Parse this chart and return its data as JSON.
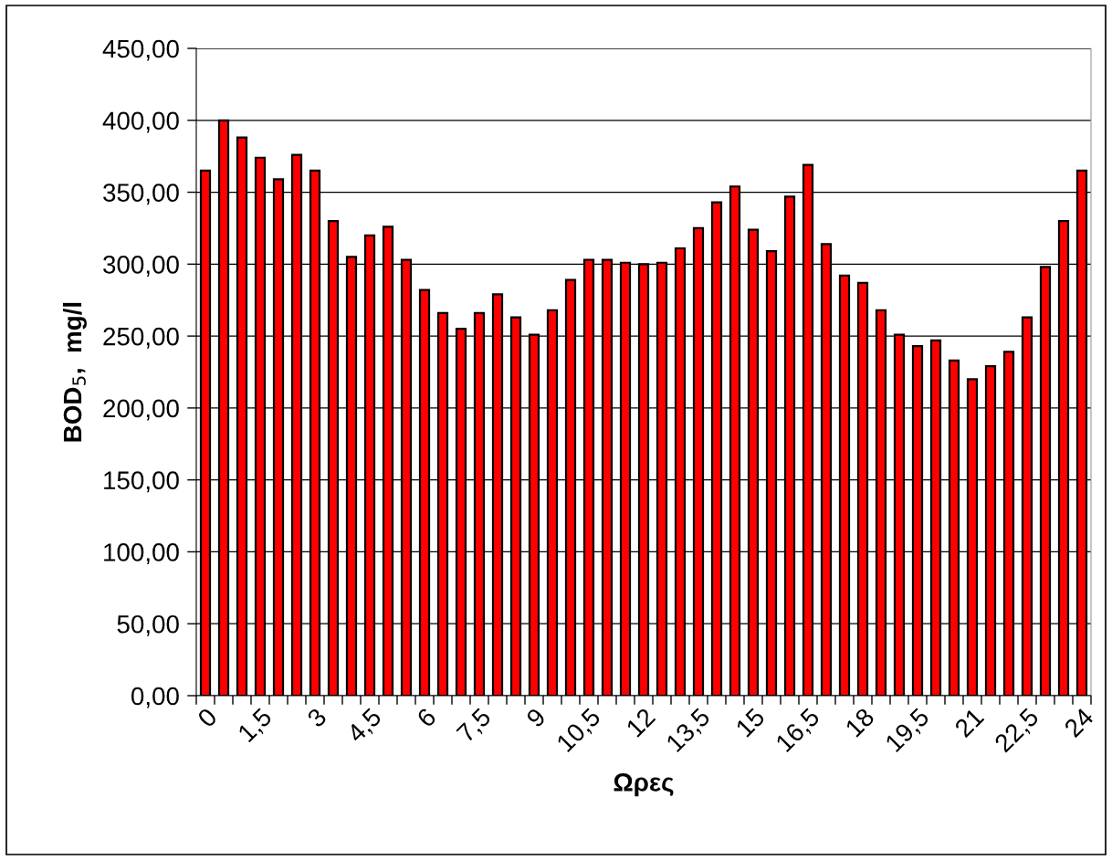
{
  "chart_data": {
    "type": "bar",
    "xlabel": "Ωρες",
    "ylabel": "BOD$_{5}$,  mg/l",
    "categories": [
      "0",
      null,
      null,
      "1,5",
      null,
      null,
      "3",
      null,
      null,
      "4,5",
      null,
      null,
      "6",
      null,
      null,
      "7,5",
      null,
      null,
      "9",
      null,
      null,
      "10,5",
      null,
      null,
      "12",
      null,
      null,
      "13,5",
      null,
      null,
      "15",
      null,
      null,
      "16,5",
      null,
      null,
      "18",
      null,
      null,
      "19,5",
      null,
      null,
      "21",
      null,
      null,
      "22,5",
      null,
      null,
      "24"
    ],
    "values": [
      365,
      400,
      388,
      374,
      359,
      376,
      365,
      330,
      305,
      320,
      326,
      303,
      282,
      266,
      255,
      266,
      279,
      263,
      251,
      268,
      289,
      303,
      303,
      301,
      300,
      301,
      311,
      325,
      343,
      354,
      324,
      309,
      347,
      369,
      314,
      292,
      287,
      268,
      251,
      243,
      247,
      233,
      220,
      229,
      239,
      263,
      298,
      330,
      365
    ],
    "color": "#ff0000",
    "ylim": [
      0,
      450
    ],
    "yticks": [
      {
        "value": 0,
        "label": "0,00"
      },
      {
        "value": 50,
        "label": "50,00"
      },
      {
        "value": 100,
        "label": "100,00"
      },
      {
        "value": 150,
        "label": "150,00"
      },
      {
        "value": 200,
        "label": "200,00"
      },
      {
        "value": 250,
        "label": "250,00"
      },
      {
        "value": 300,
        "label": "300,00"
      },
      {
        "value": 350,
        "label": "350,00"
      },
      {
        "value": 400,
        "label": "400,00"
      },
      {
        "value": 450,
        "label": "450,00"
      }
    ],
    "grid": "y"
  }
}
